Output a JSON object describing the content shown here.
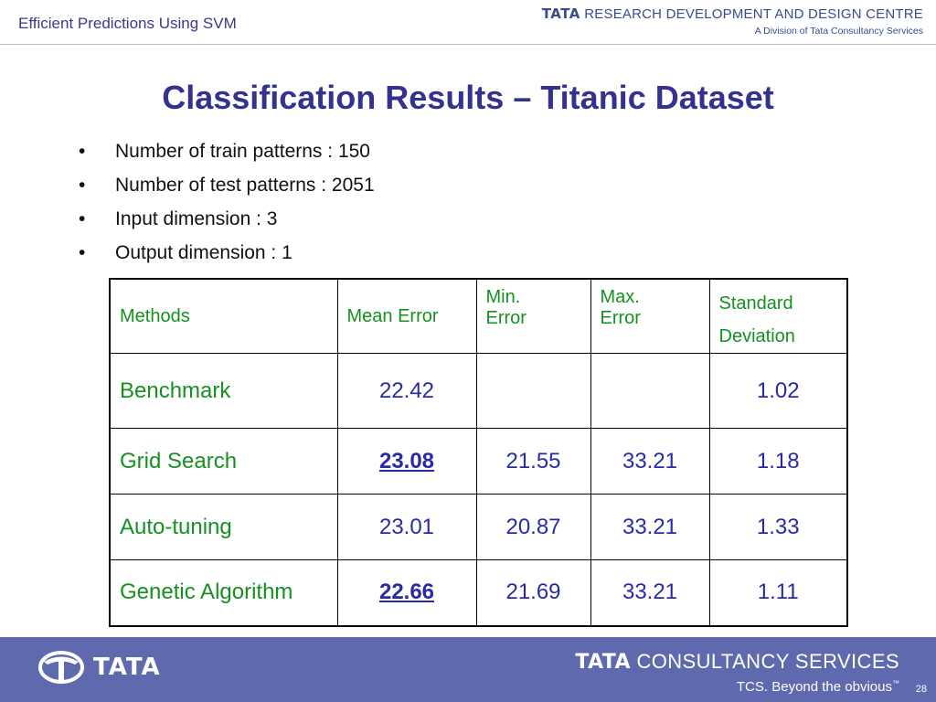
{
  "header": {
    "title": "Efficient Predictions Using SVM",
    "brand_tata": "TATA",
    "brand_name": "RESEARCH DEVELOPMENT AND DESIGN CENTRE",
    "brand_sub": "A Division of Tata Consultancy Services"
  },
  "slide": {
    "title": "Classification Results – Titanic Dataset",
    "bullet_char": "•",
    "bullets": [
      "Number of train patterns : 150",
      "Number of test patterns : 2051",
      "Input dimension : 3",
      "Output dimension : 1"
    ]
  },
  "table": {
    "headers": [
      "Methods",
      "Mean Error",
      "Min.",
      "Error",
      "Max.",
      "Error",
      "Standard",
      "Deviation"
    ],
    "rows": [
      {
        "method": "Benchmark",
        "mean": "22.42",
        "min": "",
        "max": "",
        "sd": "1.02"
      },
      {
        "method": "Grid Search",
        "mean": "23.08",
        "min": "21.55",
        "max": "33.21",
        "sd": "1.18"
      },
      {
        "method": "Auto-tuning",
        "mean": "23.01",
        "min": "20.87",
        "max": "33.21",
        "sd": "1.33"
      },
      {
        "method": "Genetic Algorithm",
        "mean": "22.66",
        "min": "21.69",
        "max": "33.21",
        "sd": "1.11"
      }
    ]
  },
  "footer": {
    "tata_logo_text": "TATA",
    "tcs_tata": "TATA",
    "tcs_name": "CONSULTANCY SERVICES",
    "tagline": "TCS. Beyond the obvious",
    "tagline_tm": "™",
    "page_number": "28"
  },
  "colors": {
    "title": "#33338f",
    "method_text": "#14911f",
    "numbers": "#2a2aa8",
    "footer_bg": "#5f6aae"
  }
}
